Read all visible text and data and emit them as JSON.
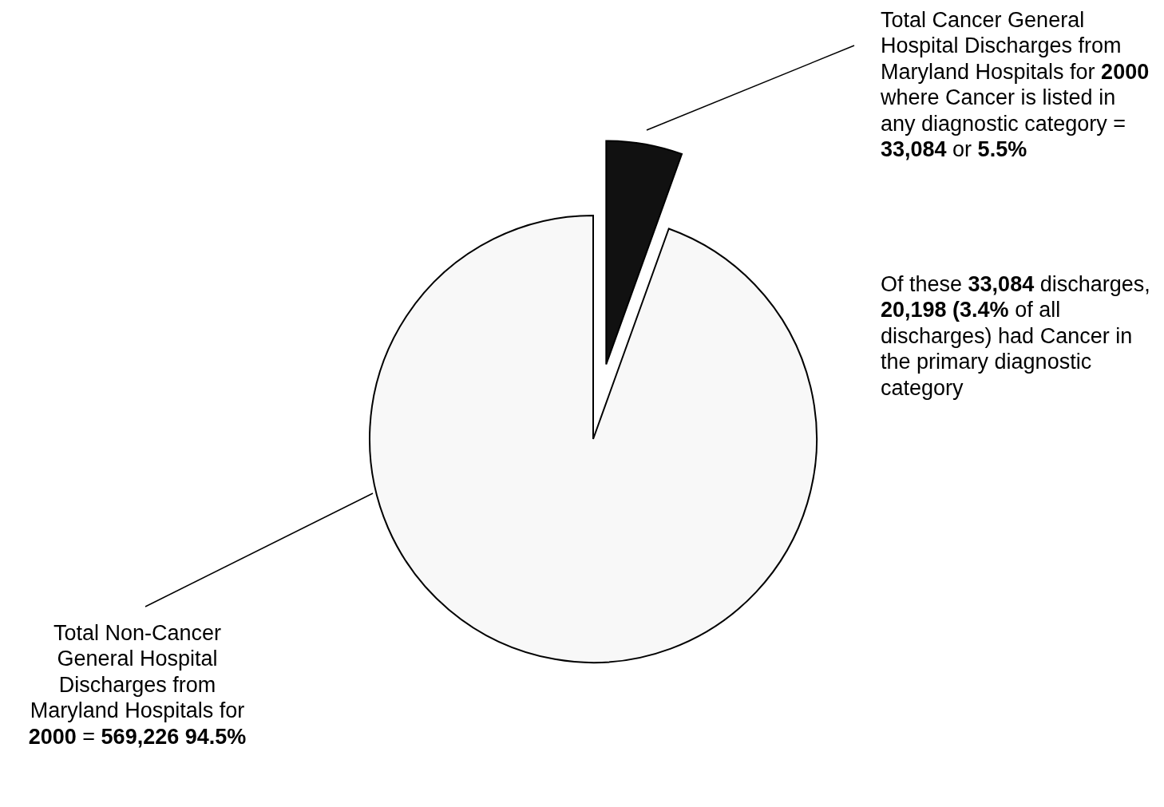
{
  "chart_data": {
    "type": "pie",
    "categories": [
      "Total Cancer General Hospital Discharges from Maryland Hospitals for 2000 where Cancer is listed in any diagnostic category = 33,084 or 5.5%",
      "Total Non-Cancer General Hospital Discharges from Maryland Hospitals for 2000 = 569,226 94.5%"
    ],
    "values": [
      33084,
      569226
    ],
    "colors": [
      "#111111",
      "#f8f8f8"
    ],
    "annotations": [
      "Of these 33,084 discharges, 20,198 (3.4% of all discharges) had Cancer in the primary diagnostic category"
    ]
  }
}
